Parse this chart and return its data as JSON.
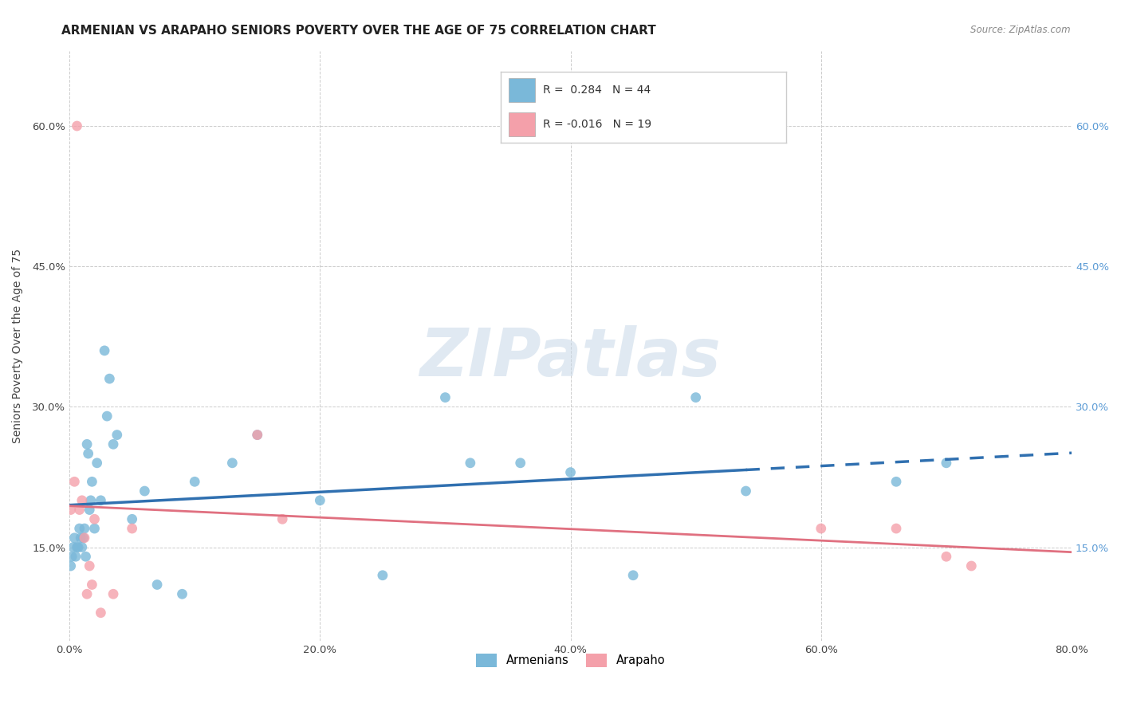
{
  "title": "ARMENIAN VS ARAPAHO SENIORS POVERTY OVER THE AGE OF 75 CORRELATION CHART",
  "source": "Source: ZipAtlas.com",
  "ylabel": "Seniors Poverty Over the Age of 75",
  "xlim": [
    0.0,
    0.8
  ],
  "ylim": [
    0.05,
    0.68
  ],
  "yticks": [
    0.15,
    0.3,
    0.45,
    0.6
  ],
  "ytick_labels": [
    "15.0%",
    "30.0%",
    "45.0%",
    "60.0%"
  ],
  "xticks": [
    0.0,
    0.2,
    0.4,
    0.6,
    0.8
  ],
  "xtick_labels": [
    "0.0%",
    "20.0%",
    "40.0%",
    "60.0%",
    "80.0%"
  ],
  "armenian_R": 0.284,
  "armenian_N": 44,
  "arapaho_R": -0.016,
  "arapaho_N": 19,
  "armenian_color": "#7ab8d9",
  "arapaho_color": "#f4a0aa",
  "trendline_armenian_color": "#3070b0",
  "trendline_arapaho_color": "#e07080",
  "watermark": "ZIPatlas",
  "legend_labels": [
    "Armenians",
    "Arapaho"
  ],
  "armenian_x": [
    0.001,
    0.002,
    0.003,
    0.004,
    0.005,
    0.006,
    0.007,
    0.008,
    0.009,
    0.01,
    0.011,
    0.012,
    0.013,
    0.014,
    0.015,
    0.016,
    0.017,
    0.018,
    0.02,
    0.022,
    0.025,
    0.028,
    0.03,
    0.032,
    0.035,
    0.038,
    0.05,
    0.06,
    0.07,
    0.09,
    0.1,
    0.13,
    0.15,
    0.2,
    0.25,
    0.3,
    0.32,
    0.36,
    0.4,
    0.45,
    0.5,
    0.54,
    0.66,
    0.7
  ],
  "armenian_y": [
    0.13,
    0.14,
    0.15,
    0.16,
    0.14,
    0.15,
    0.15,
    0.17,
    0.16,
    0.15,
    0.16,
    0.17,
    0.14,
    0.26,
    0.25,
    0.19,
    0.2,
    0.22,
    0.17,
    0.24,
    0.2,
    0.36,
    0.29,
    0.33,
    0.26,
    0.27,
    0.18,
    0.21,
    0.11,
    0.1,
    0.22,
    0.24,
    0.27,
    0.2,
    0.12,
    0.31,
    0.24,
    0.24,
    0.23,
    0.12,
    0.31,
    0.21,
    0.22,
    0.24
  ],
  "arapaho_x": [
    0.001,
    0.004,
    0.006,
    0.008,
    0.01,
    0.012,
    0.014,
    0.016,
    0.018,
    0.02,
    0.025,
    0.035,
    0.05,
    0.15,
    0.17,
    0.6,
    0.66,
    0.7,
    0.72
  ],
  "arapaho_y": [
    0.19,
    0.22,
    0.6,
    0.19,
    0.2,
    0.16,
    0.1,
    0.13,
    0.11,
    0.18,
    0.08,
    0.1,
    0.17,
    0.27,
    0.18,
    0.17,
    0.17,
    0.14,
    0.13
  ],
  "background_color": "#ffffff",
  "grid_color": "#cccccc",
  "title_fontsize": 11,
  "axis_label_fontsize": 10,
  "tick_fontsize": 9.5,
  "marker_size": 85,
  "right_tick_color": "#5b9bd5"
}
